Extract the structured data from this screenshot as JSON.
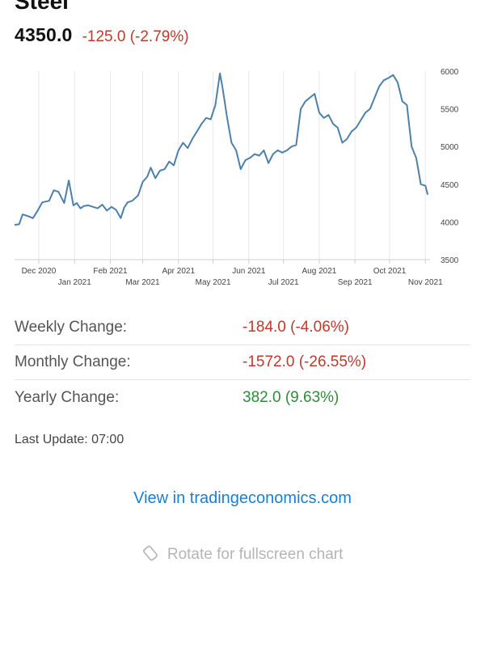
{
  "header": {
    "title": "Steel",
    "price": "4350.0",
    "change": "-125.0 (-2.79%)"
  },
  "chart_data": {
    "type": "line",
    "x_tick_labels": [
      "Dec 2020",
      "Jan 2021",
      "Feb 2021",
      "Mar 2021",
      "Apr 2021",
      "May 2021",
      "Jun 2021",
      "Jul 2021",
      "Aug 2021",
      "Sep 2021",
      "Oct 2021",
      "Nov 2021"
    ],
    "y_ticks": [
      3500,
      4000,
      4500,
      5000,
      5500,
      6000
    ],
    "ylim": [
      3500,
      6000
    ],
    "y_axis_position": "right",
    "grid": "vertical",
    "color": "#4d80aa",
    "series": [
      {
        "x": [
          "2020-11-10",
          "2020-11-14",
          "2020-11-17",
          "2020-11-21",
          "2020-11-26",
          "2020-11-30",
          "2020-12-04",
          "2020-12-10",
          "2020-12-14",
          "2020-12-18",
          "2020-12-23",
          "2020-12-27",
          "2020-12-31",
          "2021-01-03",
          "2021-01-06",
          "2021-01-09",
          "2021-01-13",
          "2021-01-17",
          "2021-01-21",
          "2021-01-25",
          "2021-01-29",
          "2021-02-02",
          "2021-02-06",
          "2021-02-10",
          "2021-02-13",
          "2021-02-16",
          "2021-02-20",
          "2021-02-25",
          "2021-03-01",
          "2021-03-05",
          "2021-03-08",
          "2021-03-12",
          "2021-03-16",
          "2021-03-20",
          "2021-03-24",
          "2021-03-28",
          "2021-04-01",
          "2021-04-05",
          "2021-04-09",
          "2021-04-13",
          "2021-04-17",
          "2021-04-21",
          "2021-04-25",
          "2021-04-29",
          "2021-05-03",
          "2021-05-07",
          "2021-05-09",
          "2021-05-11",
          "2021-05-13",
          "2021-05-17",
          "2021-05-21",
          "2021-05-25",
          "2021-05-29",
          "2021-06-02",
          "2021-06-06",
          "2021-06-10",
          "2021-06-14",
          "2021-06-18",
          "2021-06-22",
          "2021-06-26",
          "2021-06-30",
          "2021-07-04",
          "2021-07-08",
          "2021-07-12",
          "2021-07-16",
          "2021-07-20",
          "2021-07-24",
          "2021-07-28",
          "2021-08-01",
          "2021-08-05",
          "2021-08-09",
          "2021-08-13",
          "2021-08-17",
          "2021-08-21",
          "2021-08-25",
          "2021-08-29",
          "2021-09-02",
          "2021-09-06",
          "2021-09-10",
          "2021-09-14",
          "2021-09-18",
          "2021-09-22",
          "2021-09-26",
          "2021-09-30",
          "2021-10-04",
          "2021-10-08",
          "2021-10-12",
          "2021-10-16",
          "2021-10-20",
          "2021-10-24",
          "2021-10-28",
          "2021-11-01",
          "2021-11-03"
        ],
        "values": [
          3960,
          3970,
          4100,
          4080,
          4050,
          4150,
          4260,
          4280,
          4420,
          4400,
          4250,
          4550,
          4220,
          4250,
          4180,
          4210,
          4220,
          4200,
          4180,
          4230,
          4150,
          4200,
          4160,
          4050,
          4190,
          4260,
          4280,
          4350,
          4530,
          4600,
          4720,
          4580,
          4680,
          4700,
          4800,
          4750,
          4950,
          5050,
          4980,
          5100,
          5200,
          5300,
          5380,
          5360,
          5550,
          5970,
          5800,
          5600,
          5400,
          5050,
          4950,
          4700,
          4820,
          4850,
          4900,
          4880,
          4950,
          4780,
          4900,
          4950,
          4920,
          4950,
          5000,
          5020,
          5500,
          5600,
          5650,
          5700,
          5450,
          5380,
          5420,
          5300,
          5250,
          5050,
          5100,
          5200,
          5250,
          5350,
          5450,
          5500,
          5650,
          5800,
          5880,
          5910,
          5950,
          5850,
          5600,
          5550,
          5000,
          4850,
          4500,
          4480,
          4360
        ]
      }
    ]
  },
  "stats": [
    {
      "label": "Weekly Change:",
      "value": "-184.0 (-4.06%)",
      "trend": "neg"
    },
    {
      "label": "Monthly Change:",
      "value": "-1572.0 (-26.55%)",
      "trend": "neg"
    },
    {
      "label": "Yearly Change:",
      "value": "382.0 (9.63%)",
      "trend": "pos"
    }
  ],
  "footer": {
    "last_update": "Last Update: 07:00",
    "link_text": "View in tradingeconomics.com",
    "rotate_text": "Rotate for fullscreen chart",
    "rotate_icon": "rotate-device-icon"
  },
  "colors": {
    "negative": "#c0392b",
    "positive": "#2e8b3a",
    "link": "#1a7fd4",
    "series": "#4d80aa"
  }
}
